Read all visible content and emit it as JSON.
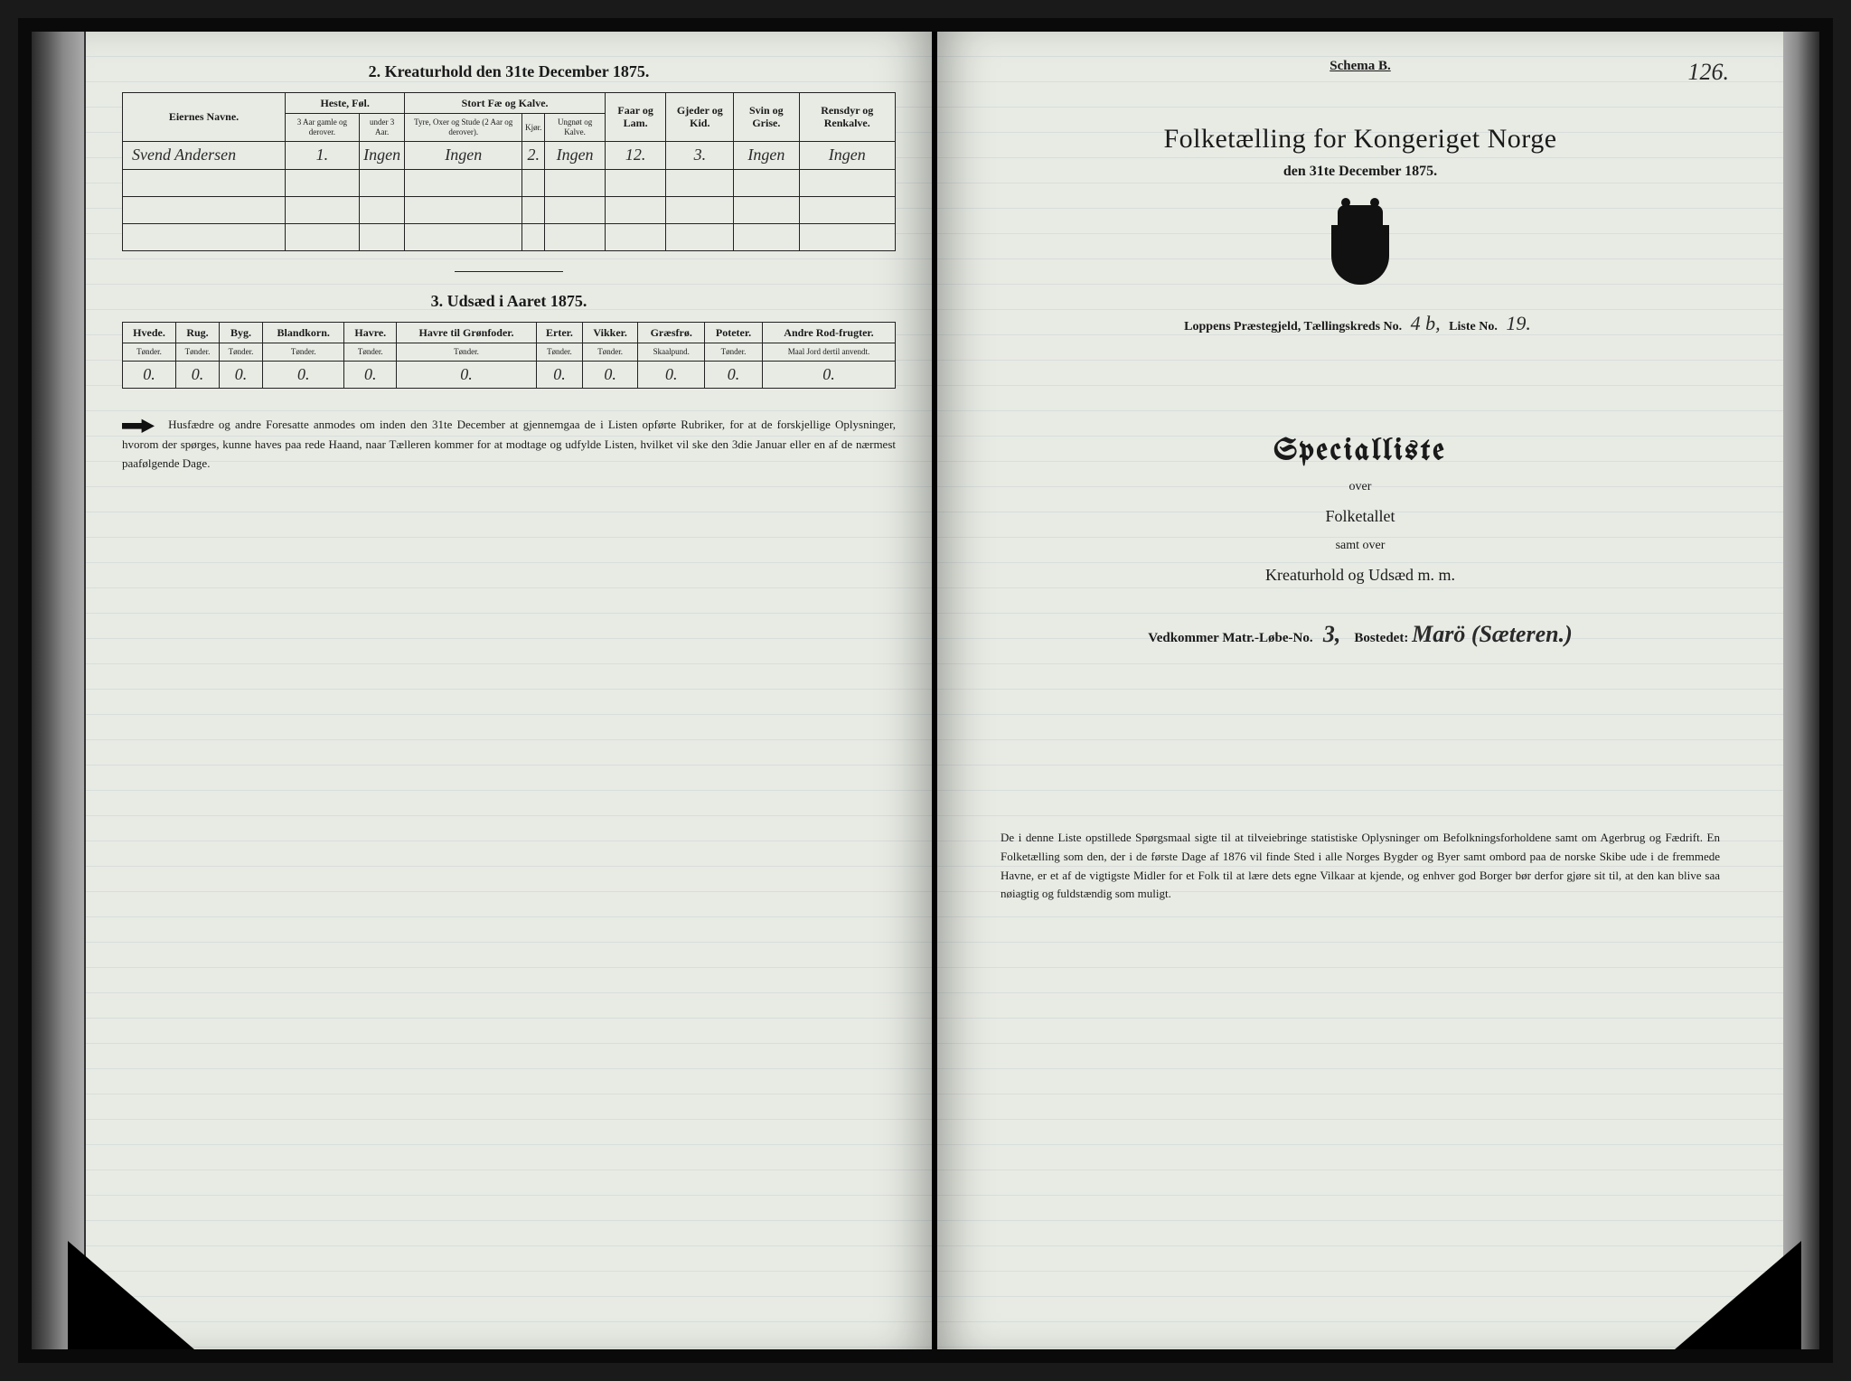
{
  "left": {
    "section2_title": "2.  Kreaturhold den 31te December 1875.",
    "table2": {
      "col_owner": "Eiernes Navne.",
      "grp_horse": "Heste, Føl.",
      "grp_cattle": "Stort Fæ og Kalve.",
      "col_sheep": "Faar og Lam.",
      "col_goat": "Gjeder og Kid.",
      "col_pig": "Svin og Grise.",
      "col_reindeer": "Rensdyr og Renkalve.",
      "sub_h1": "3 Aar gamle og derover.",
      "sub_h2": "under 3 Aar.",
      "sub_c1": "Tyre, Oxer og Stude (2 Aar og derover).",
      "sub_c2": "Kjør.",
      "sub_c3": "Ungnøt og Kalve.",
      "row1": {
        "owner": "Svend Andersen",
        "h1": "1.",
        "h2": "Ingen",
        "c1": "Ingen",
        "c2": "2.",
        "c3": "Ingen",
        "sheep": "12.",
        "goat": "3.",
        "pig": "Ingen",
        "rein": "Ingen"
      }
    },
    "section3_title": "3.  Udsæd i Aaret 1875.",
    "table3": {
      "cols": [
        "Hvede.",
        "Rug.",
        "Byg.",
        "Blandkorn.",
        "Havre.",
        "Havre til Grønfoder.",
        "Erter.",
        "Vikker.",
        "Græsfrø.",
        "Poteter.",
        "Andre Rod-frugter."
      ],
      "subs": [
        "Tønder.",
        "Tønder.",
        "Tønder.",
        "Tønder.",
        "Tønder.",
        "Tønder.",
        "Tønder.",
        "Tønder.",
        "Skaalpund.",
        "Tønder.",
        "Maal Jord dertil anvendt."
      ],
      "row": [
        "0.",
        "0.",
        "0.",
        "0.",
        "0.",
        "0.",
        "0.",
        "0.",
        "0.",
        "0.",
        "0."
      ]
    },
    "footnote": "Husfædre og andre Foresatte anmodes om inden den 31te December at gjennemgaa de i Listen opførte Rubriker, for at de forskjellige Oplysninger, hvorom der spørges, kunne haves paa rede Haand, naar Tælleren kommer for at modtage og udfylde Listen, hvilket vil ske den 3die Januar eller en af de nærmest paafølgende Dage."
  },
  "right": {
    "page_number": "126.",
    "schema": "Schema B.",
    "main_title": "Folketælling for Kongeriget Norge",
    "sub_title": "den 31te December 1875.",
    "meta_prefix": "Loppens Præstegjeld,  Tællingskreds No.",
    "meta_kreds": "4 b,",
    "meta_liste_label": "Liste No.",
    "meta_liste": "19.",
    "special": "Specialliste",
    "over": "over",
    "folketallet": "Folketallet",
    "samt": "samt over",
    "kreatur": "Kreaturhold og Udsæd m. m.",
    "vedk_label": "Vedkommer Matr.-Løbe-No.",
    "vedk_no": "3,",
    "bostedet_label": "Bostedet:",
    "bostedet": "Marö (Sæteren.)",
    "footnote": "De i denne Liste opstillede Spørgsmaal sigte til at tilveiebringe statistiske Oplysninger om Befolkningsforholdene samt om Agerbrug og Fædrift.  En Folketælling som den, der i de første Dage af 1876 vil finde Sted i alle Norges Bygder og Byer samt ombord paa de norske Skibe ude i de fremmede Havne, er et af de vigtigste Midler for et Folk til at lære dets egne Vilkaar at kjende, og enhver god Borger bør derfor gjøre sit til, at den kan blive saa nøiagtig og fuldstændig som muligt."
  }
}
